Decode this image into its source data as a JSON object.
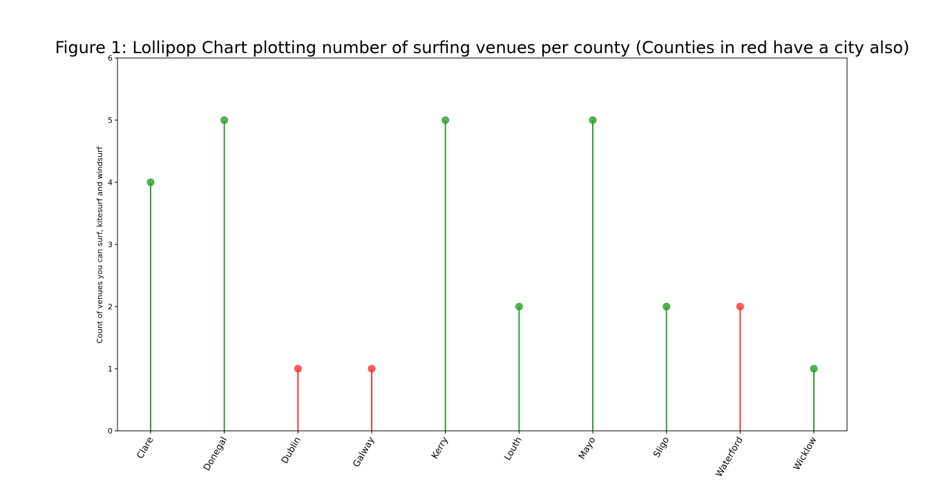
{
  "chart_data": {
    "type": "lollipop",
    "title": "Figure 1: Lollipop Chart plotting number of surfing venues per county (Counties in red have a city also)",
    "xlabel": "",
    "ylabel": "Count of venues you can surf, kitesurf and windsurf",
    "ylim": [
      0,
      6
    ],
    "yticks": [
      "0",
      "1",
      "2",
      "3",
      "4",
      "5",
      "6"
    ],
    "grid": false,
    "categories": [
      "Clare",
      "Donegal",
      "Dublin",
      "Galway",
      "Kerry",
      "Louth",
      "Mayo",
      "Sligo",
      "Waterford",
      "Wicklow"
    ],
    "values": [
      4,
      5,
      1,
      1,
      5,
      2,
      5,
      2,
      2,
      1
    ],
    "has_city": [
      false,
      false,
      true,
      true,
      false,
      false,
      false,
      false,
      true,
      false
    ],
    "colors": {
      "no_city": "#2ca02c",
      "city": "#ff3333",
      "axis": "#000000"
    }
  }
}
